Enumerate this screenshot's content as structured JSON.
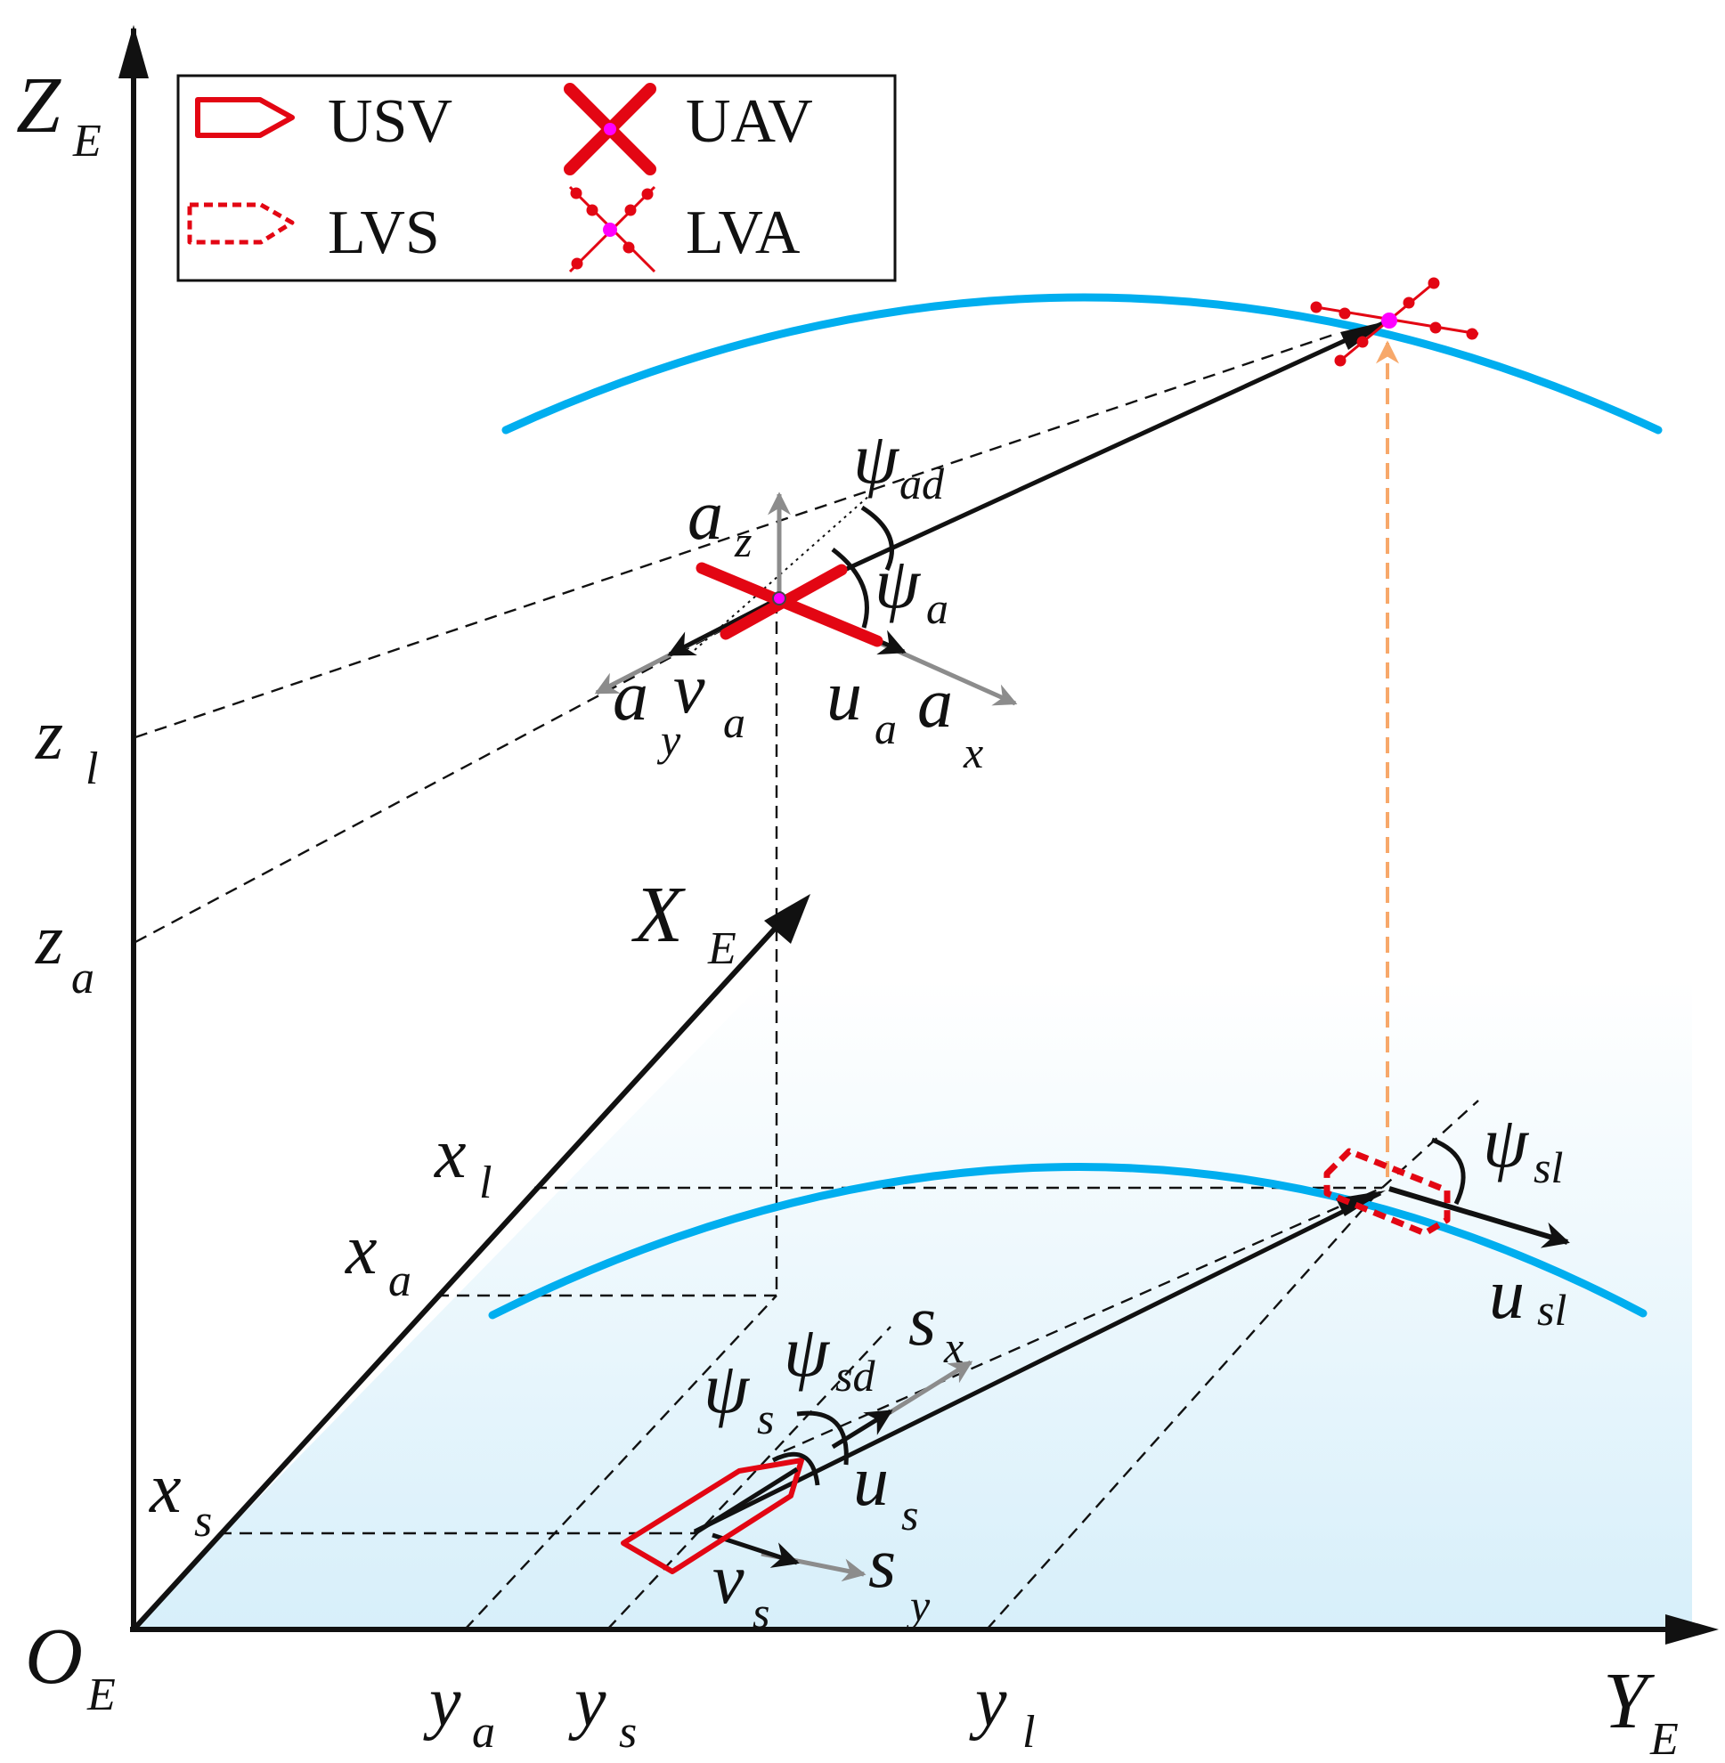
{
  "legend": {
    "items": [
      {
        "key": "usv",
        "label": "USV"
      },
      {
        "key": "uav",
        "label": "UAV"
      },
      {
        "key": "lvs",
        "label": "LVS"
      },
      {
        "key": "lva",
        "label": "LVA"
      }
    ]
  },
  "axes": {
    "z": {
      "main": "Z",
      "sub": "E"
    },
    "x": {
      "main": "X",
      "sub": "E"
    },
    "y": {
      "main": "Y",
      "sub": "E"
    },
    "origin": {
      "main": "O",
      "sub": "E"
    }
  },
  "ticks": {
    "zl": {
      "main": "z",
      "sub": "l"
    },
    "za": {
      "main": "z",
      "sub": "a"
    },
    "xl": {
      "main": "x",
      "sub": "l"
    },
    "xa": {
      "main": "x",
      "sub": "a"
    },
    "xs": {
      "main": "x",
      "sub": "s"
    },
    "ya": {
      "main": "y",
      "sub": "a"
    },
    "ys": {
      "main": "y",
      "sub": "s"
    },
    "yl": {
      "main": "y",
      "sub": "l"
    }
  },
  "vectors": {
    "az": {
      "main": "a",
      "sub": "z"
    },
    "ay": {
      "main": "a",
      "sub": "y"
    },
    "ax": {
      "main": "a",
      "sub": "x"
    },
    "va": {
      "main": "v",
      "sub": "a"
    },
    "ua": {
      "main": "u",
      "sub": "a"
    },
    "sx": {
      "main": "s",
      "sub": "x"
    },
    "sy": {
      "main": "s",
      "sub": "y"
    },
    "us": {
      "main": "u",
      "sub": "s"
    },
    "vs": {
      "main": "v",
      "sub": "s"
    },
    "usl": {
      "main": "u",
      "sub": "sl"
    }
  },
  "angles": {
    "psi_ad": {
      "main": "ψ",
      "sub": "ad"
    },
    "psi_a": {
      "main": "ψ",
      "sub": "a"
    },
    "psi_sd": {
      "main": "ψ",
      "sub": "sd"
    },
    "psi_s": {
      "main": "ψ",
      "sub": "s"
    },
    "psi_sl": {
      "main": "ψ",
      "sub": "sl"
    }
  },
  "colors": {
    "path": "#00aeef",
    "vehicle": "#e30613",
    "point": "#ff00ff",
    "projection": "#f7a86a",
    "gray_vector": "#8c8c8c",
    "plane_top": "#ffffff",
    "plane_bottom": "#d7effa"
  }
}
